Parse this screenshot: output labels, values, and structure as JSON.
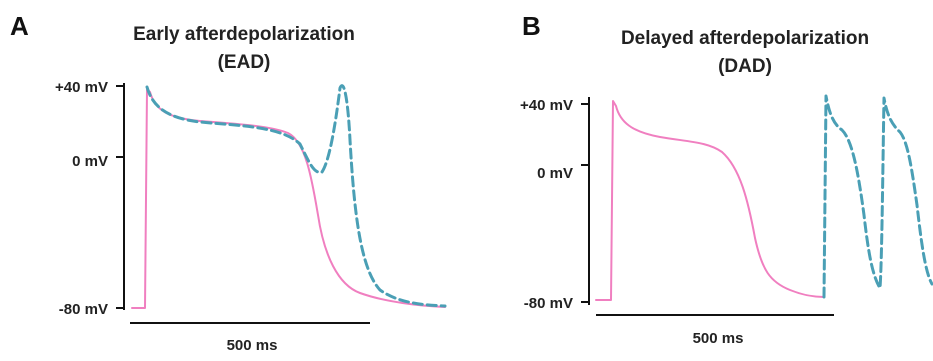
{
  "colors": {
    "normal_trace": "#f07fc0",
    "abnormal_trace": "#4a9fb5",
    "axis": "#111111"
  },
  "panel_a": {
    "letter": "A",
    "title_line1": "Early afterdepolarization",
    "title_line2": "(EAD)",
    "y_ticks": [
      "+40 mV",
      "0 mV",
      "-80 mV"
    ],
    "scale_bar_label": "500 ms"
  },
  "panel_b": {
    "letter": "B",
    "title_line1": "Delayed afterdepolarization",
    "title_line2": "(DAD)",
    "y_ticks": [
      "+40 mV",
      "0 mV",
      "-80 mV"
    ],
    "scale_bar_label": "500 ms"
  }
}
